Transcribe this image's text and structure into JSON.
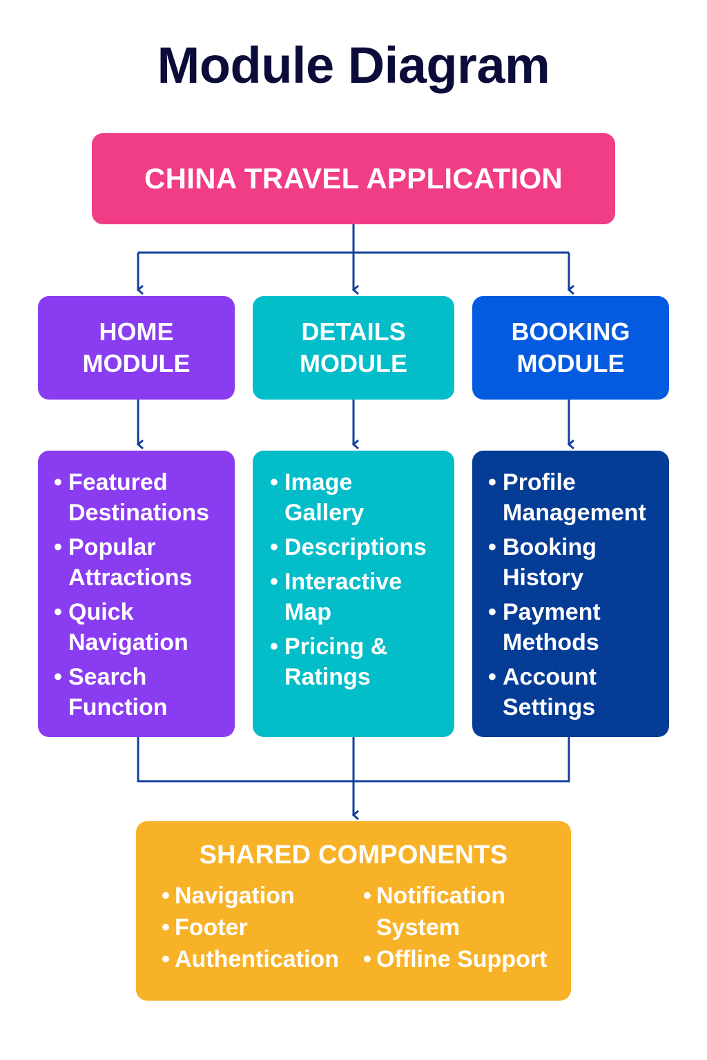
{
  "title": "Module Diagram",
  "colors": {
    "connector": "#123f9c",
    "root": "#f03d86",
    "home": "#8a3cf0",
    "details": "#03bdc9",
    "booking_header": "#055be0",
    "booking_list": "#053c96",
    "shared": "#f8b228"
  },
  "root": {
    "label": "CHINA TRAVEL APPLICATION"
  },
  "modules": [
    {
      "line1": "HOME",
      "line2": "MODULE",
      "items": [
        "Featured Destinations",
        "Popular Attractions",
        "Quick Navigation",
        "Search Function"
      ]
    },
    {
      "line1": "DETAILS",
      "line2": "MODULE",
      "items": [
        "Image Gallery",
        "Descriptions",
        "Interactive Map",
        "Pricing & Ratings"
      ]
    },
    {
      "line1": "BOOKING",
      "line2": "MODULE",
      "items": [
        "Profile Management",
        "Booking History",
        "Payment Methods",
        "Account Settings"
      ]
    }
  ],
  "shared": {
    "title": "SHARED COMPONENTS",
    "left_items": [
      "Navigation",
      "Footer",
      "Authentication"
    ],
    "right_items": [
      "Notification System",
      "Offline Support"
    ]
  }
}
